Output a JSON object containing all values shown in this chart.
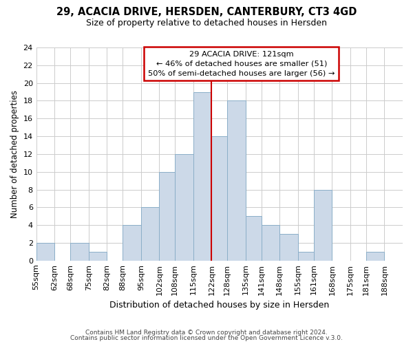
{
  "title": "29, ACACIA DRIVE, HERSDEN, CANTERBURY, CT3 4GD",
  "subtitle": "Size of property relative to detached houses in Hersden",
  "xlabel": "Distribution of detached houses by size in Hersden",
  "ylabel": "Number of detached properties",
  "footer_line1": "Contains HM Land Registry data © Crown copyright and database right 2024.",
  "footer_line2": "Contains public sector information licensed under the Open Government Licence v.3.0.",
  "bin_labels": [
    "55sqm",
    "62sqm",
    "68sqm",
    "75sqm",
    "82sqm",
    "88sqm",
    "95sqm",
    "102sqm",
    "108sqm",
    "115sqm",
    "122sqm",
    "128sqm",
    "135sqm",
    "141sqm",
    "148sqm",
    "155sqm",
    "161sqm",
    "168sqm",
    "175sqm",
    "181sqm",
    "188sqm"
  ],
  "bar_heights": [
    2,
    0,
    2,
    1,
    0,
    4,
    6,
    10,
    12,
    19,
    14,
    18,
    5,
    4,
    3,
    1,
    8,
    0,
    0,
    1,
    0
  ],
  "bar_color": "#ccd9e8",
  "bar_edge_color": "#8aaec8",
  "vline_x": 122,
  "vline_color": "#cc0000",
  "ylim": [
    0,
    24
  ],
  "yticks": [
    0,
    2,
    4,
    6,
    8,
    10,
    12,
    14,
    16,
    18,
    20,
    22,
    24
  ],
  "annotation_title": "29 ACACIA DRIVE: 121sqm",
  "annotation_line1": "← 46% of detached houses are smaller (51)",
  "annotation_line2": "50% of semi-detached houses are larger (56) →",
  "annotation_box_color": "#ffffff",
  "annotation_box_edge": "#cc0000",
  "bin_starts": [
    55,
    62,
    68,
    75,
    82,
    88,
    95,
    102,
    108,
    115,
    122,
    128,
    135,
    141,
    148,
    155,
    161,
    168,
    175,
    181,
    188
  ],
  "bin_ends": [
    62,
    68,
    75,
    82,
    88,
    95,
    102,
    108,
    115,
    122,
    128,
    135,
    141,
    148,
    155,
    161,
    168,
    175,
    181,
    188,
    195
  ]
}
